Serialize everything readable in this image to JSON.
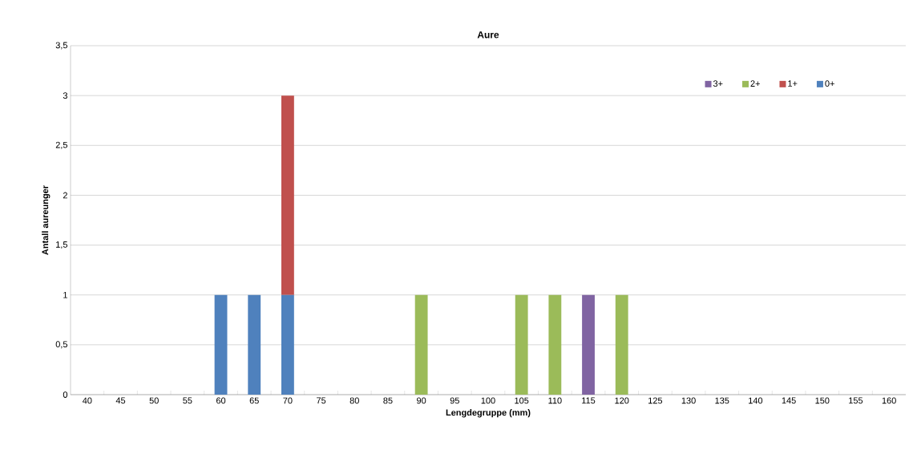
{
  "chart_data": {
    "type": "bar",
    "title": "Aure",
    "xlabel": "Lengdegruppe (mm)",
    "ylabel": "Antall aureunger",
    "categories": [
      "40",
      "45",
      "50",
      "55",
      "60",
      "65",
      "70",
      "75",
      "80",
      "85",
      "90",
      "95",
      "100",
      "105",
      "110",
      "115",
      "120",
      "125",
      "130",
      "135",
      "140",
      "145",
      "150",
      "155",
      "160"
    ],
    "stacked": true,
    "series": [
      {
        "name": "0+",
        "color": "#4f81bd",
        "values": [
          0,
          0,
          0,
          0,
          1,
          1,
          1,
          0,
          0,
          0,
          0,
          0,
          0,
          0,
          0,
          0,
          0,
          0,
          0,
          0,
          0,
          0,
          0,
          0,
          0
        ]
      },
      {
        "name": "1+",
        "color": "#c0504d",
        "values": [
          0,
          0,
          0,
          0,
          0,
          0,
          2,
          0,
          0,
          0,
          0,
          0,
          0,
          0,
          0,
          0,
          0,
          0,
          0,
          0,
          0,
          0,
          0,
          0,
          0
        ]
      },
      {
        "name": "2+",
        "color": "#9bbb59",
        "values": [
          0,
          0,
          0,
          0,
          0,
          0,
          0,
          0,
          0,
          0,
          1,
          0,
          0,
          1,
          1,
          0,
          1,
          0,
          0,
          0,
          0,
          0,
          0,
          0,
          0
        ]
      },
      {
        "name": "3+",
        "color": "#8064a2",
        "values": [
          0,
          0,
          0,
          0,
          0,
          0,
          0,
          0,
          0,
          0,
          0,
          0,
          0,
          0,
          0,
          1,
          0,
          0,
          0,
          0,
          0,
          0,
          0,
          0,
          0
        ]
      }
    ],
    "ylim": [
      0,
      3.5
    ],
    "yticks": [
      0,
      {
        "value": 0.5,
        "label": "0,5"
      },
      1,
      {
        "value": 1.5,
        "label": "1,5"
      },
      2,
      {
        "value": 2.5,
        "label": "2,5"
      },
      3,
      {
        "value": 3.5,
        "label": "3,5"
      }
    ],
    "grid": "y",
    "legend": "top right"
  }
}
